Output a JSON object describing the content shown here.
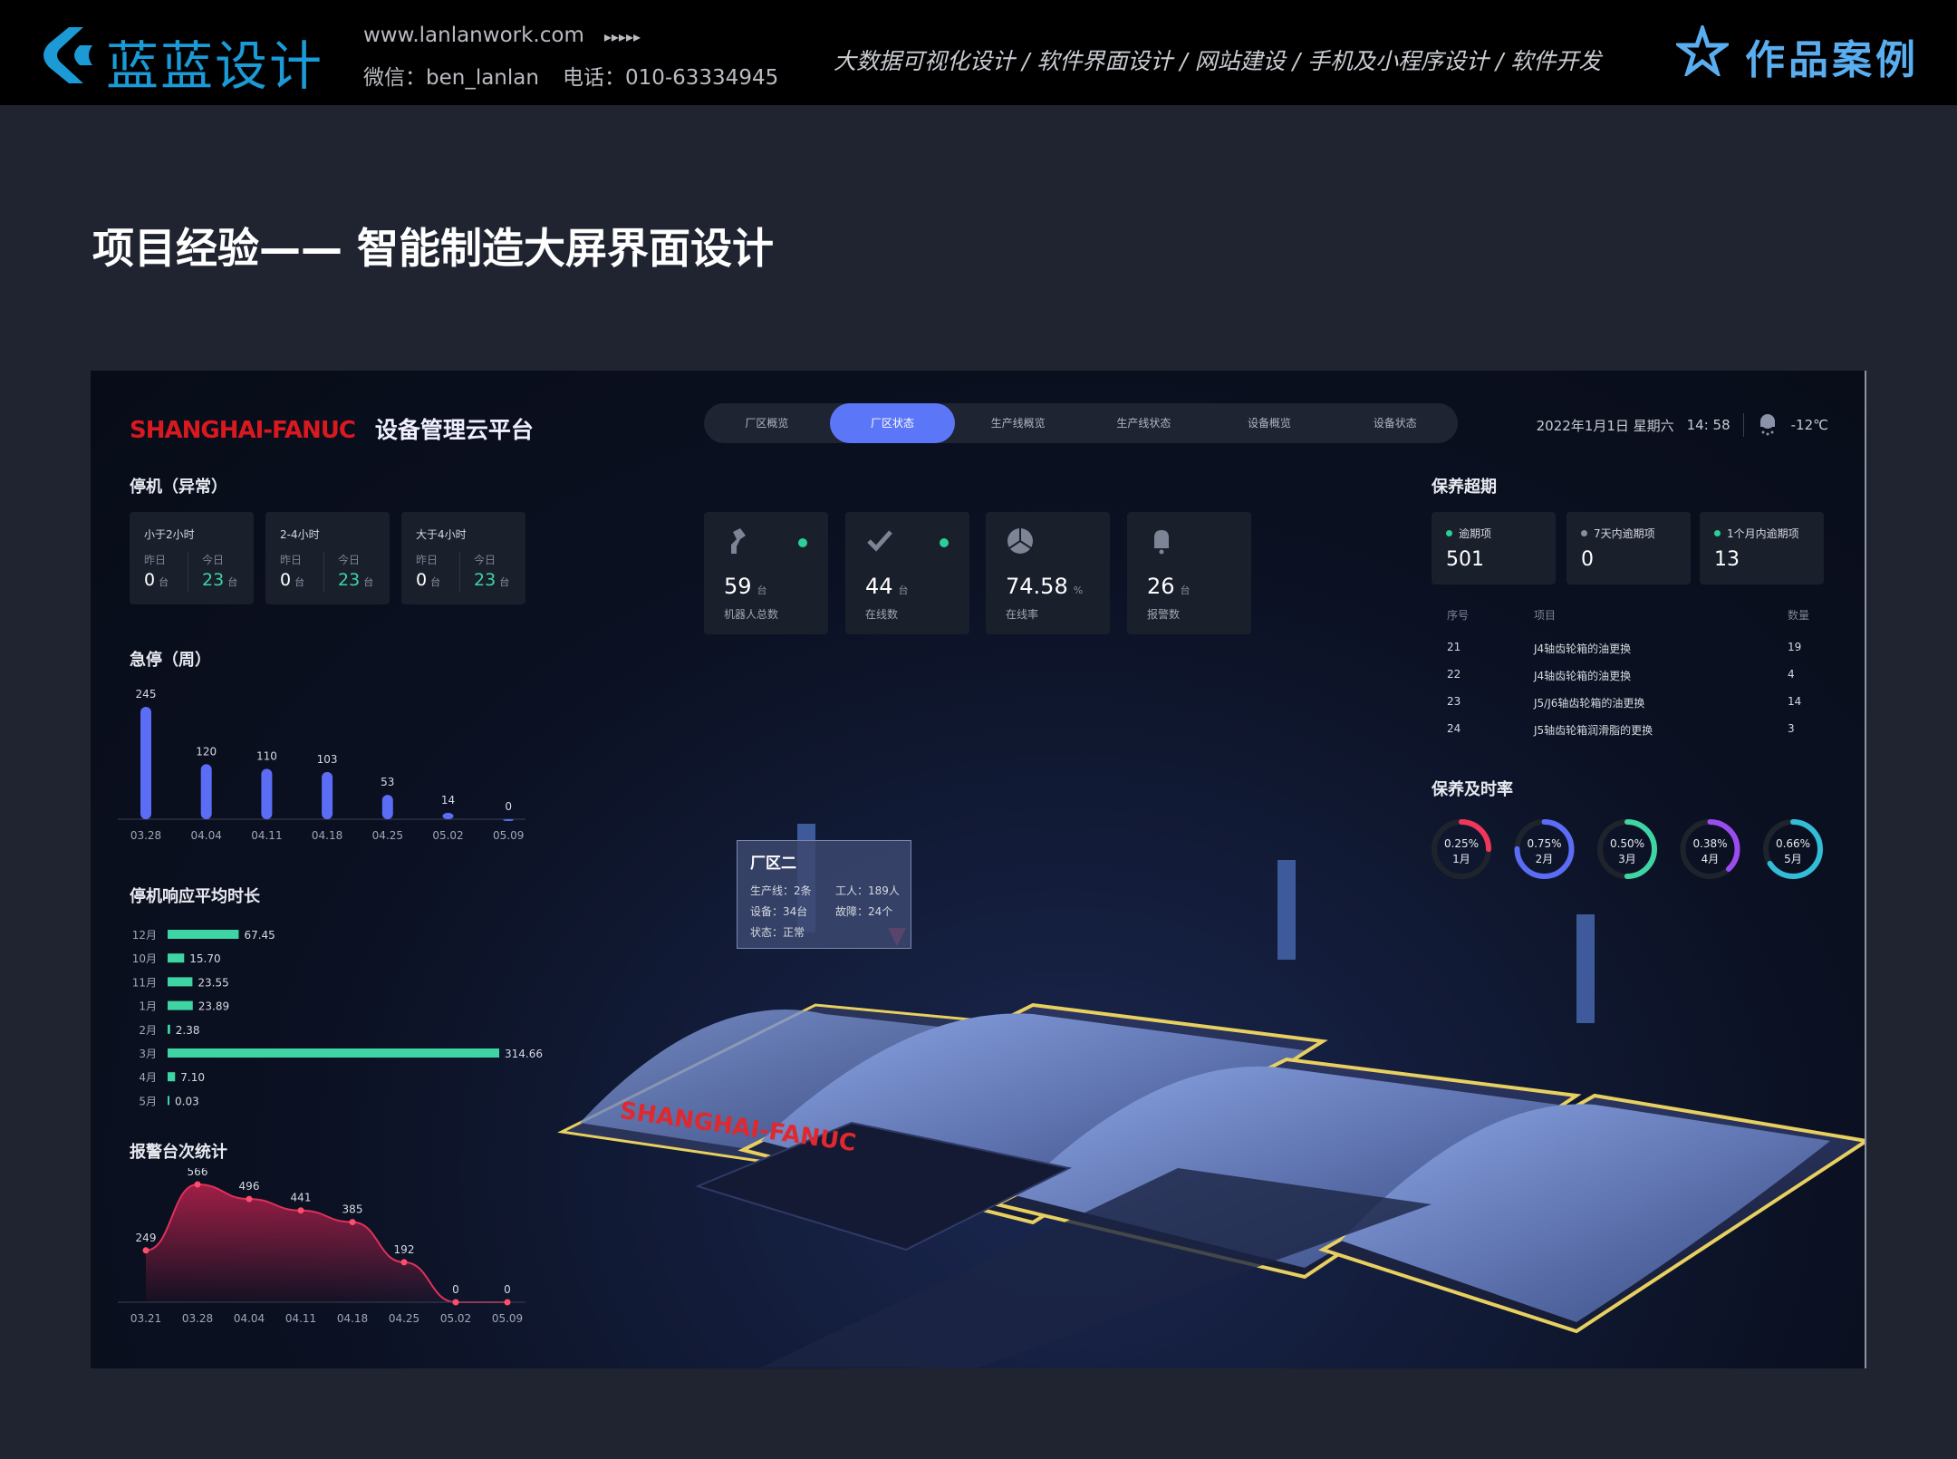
{
  "header": {
    "logo_text": "蓝蓝设计",
    "website": "www.lanlanwork.com",
    "arrows": "▸▸▸▸▸",
    "wechat": "微信：ben_lanlan",
    "phone": "电话：010-63334945",
    "services": "大数据可视化设计 / 软件界面设计 / 网站建设 / 手机及小程序设计 / 软件开发",
    "works_label": "作品案例",
    "brand_color": "#1b9ad6"
  },
  "page_title": "项目经验—— 智能制造大屏界面设计",
  "dashboard": {
    "brand": "SHANGHAI-FANUC",
    "platform": "设备管理云平台",
    "tabs": [
      "厂区概览",
      "厂区状态",
      "生产线概览",
      "生产线状态",
      "设备概览",
      "设备状态"
    ],
    "active_tab": "厂区状态",
    "datetime": "2022年1月1日 星期六",
    "time": "14: 58",
    "weather_icon": "snow-cloud-icon",
    "temperature": "-12℃",
    "accent": "#5b76f7",
    "downtime": {
      "title": "停机（异常）",
      "cards": [
        {
          "label": "小于2小时",
          "yesterday_label": "昨日",
          "yesterday": "0",
          "today_label": "今日",
          "today": "23",
          "unit": "台"
        },
        {
          "label": "2-4小时",
          "yesterday_label": "昨日",
          "yesterday": "0",
          "today_label": "今日",
          "today": "23",
          "unit": "台"
        },
        {
          "label": "大于4小时",
          "yesterday_label": "昨日",
          "yesterday": "0",
          "today_label": "今日",
          "today": "23",
          "unit": "台"
        }
      ]
    },
    "kpis": [
      {
        "icon": "robot-arm-icon",
        "value": "59",
        "unit": "台",
        "label": "机器人总数",
        "status_dot": true
      },
      {
        "icon": "check-icon",
        "value": "44",
        "unit": "台",
        "label": "在线数",
        "status_dot": true
      },
      {
        "icon": "pie-icon",
        "value": "74.58",
        "unit": "%",
        "label": "在线率",
        "status_dot": false
      },
      {
        "icon": "bell-icon",
        "value": "26",
        "unit": "台",
        "label": "报警数",
        "status_dot": false
      }
    ],
    "overdue": {
      "title": "保养超期",
      "cards": [
        {
          "label": "逾期项",
          "value": "501",
          "dot_color": "#2ccf95"
        },
        {
          "label": "7天内逾期项",
          "value": "0",
          "dot_color": "#8a8f9c"
        },
        {
          "label": "1个月内逾期项",
          "value": "13",
          "dot_color": "#2ccf95"
        }
      ],
      "columns": [
        "序号",
        "项目",
        "数量"
      ],
      "rows": [
        [
          "21",
          "J4轴齿轮箱的油更换",
          "19"
        ],
        [
          "22",
          "J4轴齿轮箱的油更换",
          "4"
        ],
        [
          "23",
          "J5/J6轴齿轮箱的油更换",
          "14"
        ],
        [
          "24",
          "J5轴齿轮箱润滑脂的更换",
          "3"
        ]
      ]
    },
    "tooltip": {
      "title": "厂区二",
      "lines": "生产线：2条",
      "workers": "工人：189人",
      "devices": "设备：34台",
      "faults": "故障：24个",
      "status": "状态：正常"
    },
    "scene_sign": "SHANGHAI-FANUC"
  },
  "chart_data": [
    {
      "type": "bar",
      "title": "急停（周）",
      "categories": [
        "03.28",
        "04.04",
        "04.11",
        "04.18",
        "04.25",
        "05.02",
        "05.09"
      ],
      "values": [
        245,
        120,
        110,
        103,
        53,
        14,
        0
      ],
      "color": "#5b6cf5"
    },
    {
      "type": "bar",
      "orientation": "horizontal",
      "title": "停机响应平均时长",
      "categories": [
        "12月",
        "10月",
        "11月",
        "1月",
        "2月",
        "3月",
        "4月",
        "5月"
      ],
      "values": [
        67.45,
        15.7,
        23.55,
        23.89,
        2.38,
        314.66,
        7.1,
        0.03
      ],
      "labels": [
        "67.45",
        "15.70",
        "23.55",
        "23.89",
        "2.38",
        "314.66",
        "7.10",
        "0.03"
      ],
      "color": "#3fd4a3"
    },
    {
      "type": "area",
      "title": "报警台次统计",
      "categories": [
        "03.21",
        "03.28",
        "04.04",
        "04.11",
        "04.18",
        "04.25",
        "05.02",
        "05.09"
      ],
      "values": [
        249,
        566,
        496,
        441,
        385,
        192,
        0,
        0
      ],
      "color": "#e0305a"
    },
    {
      "type": "pie",
      "title": "保养及时率",
      "items": [
        {
          "label": "0.25%",
          "month": "1月",
          "fraction": 0.25,
          "color": "#f0365a"
        },
        {
          "label": "0.75%",
          "month": "2月",
          "fraction": 0.75,
          "color": "#5b6cf5"
        },
        {
          "label": "0.50%",
          "month": "3月",
          "fraction": 0.5,
          "color": "#3fd4a3"
        },
        {
          "label": "0.38%",
          "month": "4月",
          "fraction": 0.38,
          "color": "#9b4cf0"
        },
        {
          "label": "0.66%",
          "month": "5月",
          "fraction": 0.66,
          "color": "#33bcd6"
        }
      ]
    }
  ]
}
